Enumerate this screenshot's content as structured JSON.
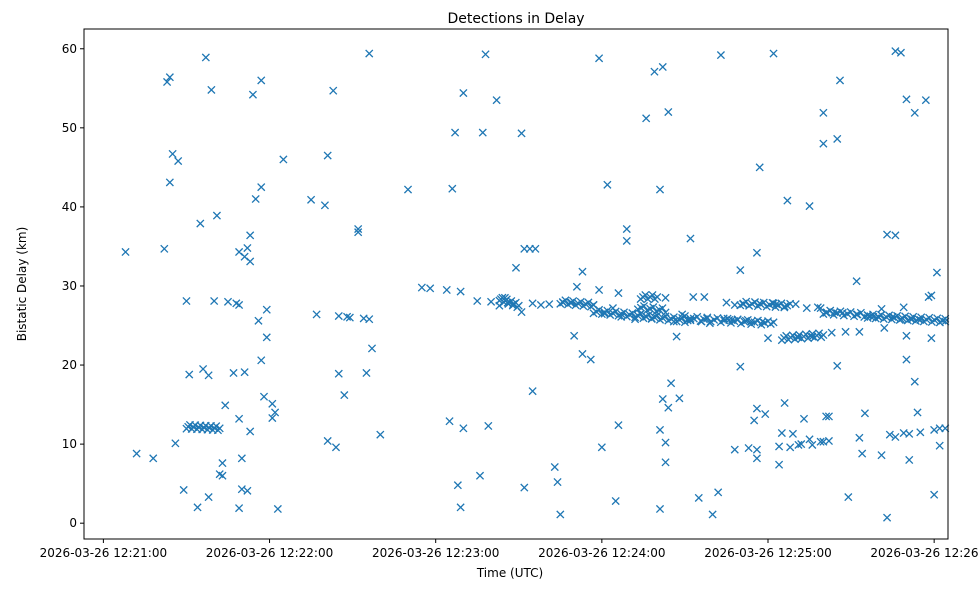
{
  "chart_data": {
    "type": "scatter",
    "title": "Detections in Delay",
    "xlabel": "Time (UTC)",
    "ylabel": "Bistatic Delay (km)",
    "marker": "x",
    "color": "#1f77b4",
    "grid": false,
    "legend": false,
    "x_tick_labels": [
      "2026-03-26 12:21:00",
      "2026-03-26 12:22:00",
      "2026-03-26 12:23:00",
      "2026-03-26 12:24:00",
      "2026-03-26 12:25:00",
      "2026-03-26 12:26:00"
    ],
    "y_ticks": [
      0,
      10,
      20,
      30,
      40,
      50,
      60
    ],
    "xlim": [
      "12:20:53",
      "12:26:05"
    ],
    "ylim": [
      -2,
      62.5
    ],
    "points": [
      [
        "12:21:08",
        34.3
      ],
      [
        "12:21:12",
        8.8
      ],
      [
        "12:21:18",
        8.2
      ],
      [
        "12:21:22",
        34.7
      ],
      [
        "12:21:23",
        55.8
      ],
      [
        "12:21:24",
        43.1
      ],
      [
        "12:21:24",
        56.4
      ],
      [
        "12:21:25",
        46.7
      ],
      [
        "12:21:27",
        45.8
      ],
      [
        "12:21:26",
        10.1
      ],
      [
        "12:21:29",
        4.2
      ],
      [
        "12:21:30",
        28.1
      ],
      [
        "12:21:31",
        18.8
      ],
      [
        "12:21:34",
        2.0
      ],
      [
        "12:21:35",
        37.9
      ],
      [
        "12:21:36",
        19.5
      ],
      [
        "12:21:38",
        18.7
      ],
      [
        "12:21:38",
        3.3
      ],
      [
        "12:21:39",
        54.8
      ],
      [
        "12:21:37",
        58.9
      ],
      [
        "12:21:40",
        28.1
      ],
      [
        "12:21:41",
        38.9
      ],
      [
        "12:21:42",
        6.2
      ],
      [
        "12:21:43",
        7.6
      ],
      [
        "12:21:43",
        6.0
      ],
      [
        "12:21:44",
        14.9
      ],
      [
        "12:21:45",
        28.0
      ],
      [
        "12:21:47",
        19.0
      ],
      [
        "12:21:48",
        27.8
      ],
      [
        "12:21:49",
        34.3
      ],
      [
        "12:21:49",
        27.6
      ],
      [
        "12:21:49",
        1.9
      ],
      [
        "12:21:49",
        13.2
      ],
      [
        "12:21:50",
        8.2
      ],
      [
        "12:21:50",
        4.3
      ],
      [
        "12:21:51",
        19.1
      ],
      [
        "12:21:51",
        33.7
      ],
      [
        "12:21:52",
        4.1
      ],
      [
        "12:21:52",
        34.8
      ],
      [
        "12:21:53",
        33.1
      ],
      [
        "12:21:53",
        36.4
      ],
      [
        "12:21:53",
        11.6
      ],
      [
        "12:21:54",
        54.2
      ],
      [
        "12:21:55",
        41.0
      ],
      [
        "12:21:56",
        25.6
      ],
      [
        "12:21:57",
        56.0
      ],
      [
        "12:21:57",
        42.5
      ],
      [
        "12:21:57",
        20.6
      ],
      [
        "12:21:58",
        16.0
      ],
      [
        "12:21:59",
        27.0
      ],
      [
        "12:21:59",
        23.5
      ],
      [
        "12:22:01",
        15.1
      ],
      [
        "12:22:01",
        13.3
      ],
      [
        "12:22:02",
        14.0
      ],
      [
        "12:22:03",
        1.8
      ],
      [
        "12:22:05",
        46.0
      ],
      [
        "12:22:15",
        40.9
      ],
      [
        "12:22:17",
        26.4
      ],
      [
        "12:22:20",
        40.2
      ],
      [
        "12:22:21",
        10.4
      ],
      [
        "12:22:21",
        46.5
      ],
      [
        "12:22:23",
        54.7
      ],
      [
        "12:22:24",
        9.6
      ],
      [
        "12:22:25",
        26.2
      ],
      [
        "12:22:25",
        18.9
      ],
      [
        "12:22:27",
        16.2
      ],
      [
        "12:22:28",
        26.1
      ],
      [
        "12:22:29",
        26.0
      ],
      [
        "12:22:32",
        37.2
      ],
      [
        "12:22:32",
        36.8
      ],
      [
        "12:22:34",
        25.9
      ],
      [
        "12:22:35",
        19.0
      ],
      [
        "12:22:36",
        59.4
      ],
      [
        "12:22:36",
        25.8
      ],
      [
        "12:22:37",
        22.1
      ],
      [
        "12:22:40",
        11.2
      ],
      [
        "12:22:50",
        42.2
      ],
      [
        "12:22:55",
        29.8
      ],
      [
        "12:22:58",
        29.7
      ],
      [
        "12:23:04",
        29.5
      ],
      [
        "12:23:05",
        12.9
      ],
      [
        "12:23:06",
        42.3
      ],
      [
        "12:23:07",
        49.4
      ],
      [
        "12:23:08",
        4.8
      ],
      [
        "12:23:09",
        29.3
      ],
      [
        "12:23:09",
        2.0
      ],
      [
        "12:23:10",
        12.0
      ],
      [
        "12:23:10",
        54.4
      ],
      [
        "12:23:15",
        28.1
      ],
      [
        "12:23:16",
        6.0
      ],
      [
        "12:23:17",
        49.4
      ],
      [
        "12:23:18",
        59.3
      ],
      [
        "12:23:19",
        12.3
      ],
      [
        "12:23:20",
        28.0
      ],
      [
        "12:23:22",
        53.5
      ],
      [
        "12:23:23",
        27.5
      ],
      [
        "12:23:25",
        28.5
      ],
      [
        "12:23:26",
        27.9
      ],
      [
        "12:23:28",
        27.7
      ],
      [
        "12:23:29",
        32.3
      ],
      [
        "12:23:31",
        49.3
      ],
      [
        "12:23:31",
        26.7
      ],
      [
        "12:23:32",
        4.5
      ],
      [
        "12:23:32",
        34.7
      ],
      [
        "12:23:34",
        34.7
      ],
      [
        "12:23:35",
        16.7
      ],
      [
        "12:23:35",
        27.8
      ],
      [
        "12:23:36",
        34.7
      ],
      [
        "12:23:38",
        27.6
      ],
      [
        "12:23:41",
        27.7
      ],
      [
        "12:23:43",
        7.1
      ],
      [
        "12:23:44",
        5.2
      ],
      [
        "12:23:45",
        1.1
      ],
      [
        "12:23:46",
        27.9
      ],
      [
        "12:23:49",
        27.9
      ],
      [
        "12:23:50",
        23.7
      ],
      [
        "12:23:51",
        29.9
      ],
      [
        "12:23:53",
        21.4
      ],
      [
        "12:23:53",
        31.8
      ],
      [
        "12:23:56",
        20.7
      ],
      [
        "12:23:57",
        27.6
      ],
      [
        "12:23:59",
        58.8
      ],
      [
        "12:23:59",
        29.5
      ],
      [
        "12:24:00",
        9.6
      ],
      [
        "12:24:01",
        26.5
      ],
      [
        "12:24:02",
        42.8
      ],
      [
        "12:24:04",
        27.2
      ],
      [
        "12:24:05",
        2.8
      ],
      [
        "12:24:06",
        12.4
      ],
      [
        "12:24:06",
        29.1
      ],
      [
        "12:24:07",
        26.1
      ],
      [
        "12:24:09",
        35.7
      ],
      [
        "12:24:09",
        37.2
      ],
      [
        "12:24:12",
        25.8
      ],
      [
        "12:24:14",
        26.5
      ],
      [
        "12:24:16",
        26.1
      ],
      [
        "12:24:16",
        51.2
      ],
      [
        "12:24:18",
        25.9
      ],
      [
        "12:24:19",
        57.1
      ],
      [
        "12:24:21",
        42.2
      ],
      [
        "12:24:21",
        11.8
      ],
      [
        "12:24:21",
        1.8
      ],
      [
        "12:24:22",
        57.7
      ],
      [
        "12:24:22",
        15.7
      ],
      [
        "12:24:23",
        7.7
      ],
      [
        "12:24:23",
        28.5
      ],
      [
        "12:24:23",
        10.2
      ],
      [
        "12:24:24",
        52.0
      ],
      [
        "12:24:24",
        14.6
      ],
      [
        "12:24:25",
        17.7
      ],
      [
        "12:24:26",
        25.5
      ],
      [
        "12:24:27",
        23.6
      ],
      [
        "12:24:28",
        15.8
      ],
      [
        "12:24:29",
        26.4
      ],
      [
        "12:24:30",
        26.2
      ],
      [
        "12:24:32",
        36.0
      ],
      [
        "12:24:33",
        28.6
      ],
      [
        "12:24:35",
        3.2
      ],
      [
        "12:24:36",
        25.5
      ],
      [
        "12:24:37",
        28.6
      ],
      [
        "12:24:38",
        25.9
      ],
      [
        "12:24:39",
        25.3
      ],
      [
        "12:24:40",
        1.1
      ],
      [
        "12:24:42",
        3.9
      ],
      [
        "12:24:43",
        59.2
      ],
      [
        "12:24:44",
        25.9
      ],
      [
        "12:24:45",
        27.9
      ],
      [
        "12:24:46",
        25.7
      ],
      [
        "12:24:47",
        25.7
      ],
      [
        "12:24:48",
        27.6
      ],
      [
        "12:24:48",
        9.3
      ],
      [
        "12:24:49",
        25.7
      ],
      [
        "12:24:50",
        19.8
      ],
      [
        "12:24:50",
        32.0
      ],
      [
        "12:24:51",
        27.7
      ],
      [
        "12:24:52",
        25.6
      ],
      [
        "12:24:53",
        9.5
      ],
      [
        "12:24:54",
        25.5
      ],
      [
        "12:24:55",
        13.0
      ],
      [
        "12:24:56",
        34.2
      ],
      [
        "12:24:56",
        9.3
      ],
      [
        "12:24:56",
        8.2
      ],
      [
        "12:24:56",
        14.5
      ],
      [
        "12:24:57",
        45.0
      ],
      [
        "12:24:57",
        27.8
      ],
      [
        "12:24:58",
        25.5
      ],
      [
        "12:24:59",
        13.8
      ],
      [
        "12:25:00",
        23.4
      ],
      [
        "12:25:01",
        25.2
      ],
      [
        "12:25:02",
        59.4
      ],
      [
        "12:25:02",
        25.4
      ],
      [
        "12:25:02",
        27.8
      ],
      [
        "12:25:03",
        27.7
      ],
      [
        "12:25:04",
        9.7
      ],
      [
        "12:25:04",
        7.4
      ],
      [
        "12:25:05",
        11.4
      ],
      [
        "12:25:06",
        27.4
      ],
      [
        "12:25:06",
        15.2
      ],
      [
        "12:25:07",
        40.8
      ],
      [
        "12:25:08",
        9.6
      ],
      [
        "12:25:09",
        11.3
      ],
      [
        "12:25:10",
        27.7
      ],
      [
        "12:25:11",
        9.9
      ],
      [
        "12:25:11",
        23.5
      ],
      [
        "12:25:12",
        10.0
      ],
      [
        "12:25:13",
        13.2
      ],
      [
        "12:25:14",
        27.2
      ],
      [
        "12:25:15",
        40.1
      ],
      [
        "12:25:15",
        10.6
      ],
      [
        "12:25:16",
        23.6
      ],
      [
        "12:25:16",
        9.9
      ],
      [
        "12:25:18",
        27.3
      ],
      [
        "12:25:19",
        10.3
      ],
      [
        "12:25:19",
        27.2
      ],
      [
        "12:25:20",
        10.3
      ],
      [
        "12:25:20",
        51.9
      ],
      [
        "12:25:20",
        48.0
      ],
      [
        "12:25:21",
        13.5
      ],
      [
        "12:25:21",
        26.6
      ],
      [
        "12:25:22",
        13.5
      ],
      [
        "12:25:22",
        10.4
      ],
      [
        "12:25:23",
        24.1
      ],
      [
        "12:25:24",
        26.7
      ],
      [
        "12:25:25",
        19.9
      ],
      [
        "12:25:25",
        48.6
      ],
      [
        "12:25:26",
        56.0
      ],
      [
        "12:25:27",
        26.6
      ],
      [
        "12:25:28",
        24.2
      ],
      [
        "12:25:29",
        3.3
      ],
      [
        "12:25:32",
        30.6
      ],
      [
        "12:25:32",
        26.4
      ],
      [
        "12:25:33",
        24.2
      ],
      [
        "12:25:33",
        10.8
      ],
      [
        "12:25:34",
        8.8
      ],
      [
        "12:25:35",
        13.9
      ],
      [
        "12:25:36",
        26.3
      ],
      [
        "12:25:38",
        26.1
      ],
      [
        "12:25:40",
        26.0
      ],
      [
        "12:25:41",
        8.6
      ],
      [
        "12:25:41",
        27.1
      ],
      [
        "12:25:42",
        24.7
      ],
      [
        "12:25:43",
        36.5
      ],
      [
        "12:25:43",
        0.7
      ],
      [
        "12:25:44",
        11.2
      ],
      [
        "12:25:45",
        26.1
      ],
      [
        "12:25:46",
        36.4
      ],
      [
        "12:25:46",
        59.7
      ],
      [
        "12:25:46",
        10.9
      ],
      [
        "12:25:48",
        59.5
      ],
      [
        "12:25:48",
        25.8
      ],
      [
        "12:25:49",
        27.3
      ],
      [
        "12:25:49",
        11.4
      ],
      [
        "12:25:50",
        53.6
      ],
      [
        "12:25:50",
        23.7
      ],
      [
        "12:25:50",
        20.7
      ],
      [
        "12:25:51",
        8.0
      ],
      [
        "12:25:51",
        11.3
      ],
      [
        "12:25:52",
        25.8
      ],
      [
        "12:25:53",
        17.9
      ],
      [
        "12:25:53",
        51.9
      ],
      [
        "12:25:54",
        14.0
      ],
      [
        "12:25:55",
        25.7
      ],
      [
        "12:25:55",
        11.5
      ],
      [
        "12:25:57",
        53.5
      ],
      [
        "12:25:58",
        28.6
      ],
      [
        "12:25:59",
        28.8
      ],
      [
        "12:25:59",
        23.4
      ],
      [
        "12:26:00",
        11.8
      ],
      [
        "12:26:00",
        3.6
      ],
      [
        "12:26:01",
        31.7
      ],
      [
        "12:26:02",
        9.8
      ],
      [
        "12:26:02",
        12.0
      ],
      [
        "12:26:04",
        12.0
      ],
      [
        "12:26:04",
        25.5
      ]
    ],
    "dense_bands": [
      {
        "t_start": "12:21:30",
        "t_end": "12:21:42",
        "y_start": 12.2,
        "y_end": 12.0,
        "count": 20
      },
      {
        "t_start": "12:23:23",
        "t_end": "12:23:30",
        "y_start": 28.4,
        "y_end": 27.5,
        "count": 14
      },
      {
        "t_start": "12:23:45",
        "t_end": "12:23:57",
        "y_start": 28.0,
        "y_end": 27.6,
        "count": 14
      },
      {
        "t_start": "12:23:57",
        "t_end": "12:24:32",
        "y_start": 26.8,
        "y_end": 25.6,
        "count": 36
      },
      {
        "t_start": "12:24:13",
        "t_end": "12:24:23",
        "y_start": 27.3,
        "y_end": 26.9,
        "count": 10
      },
      {
        "t_start": "12:24:14",
        "t_end": "12:24:20",
        "y_start": 28.6,
        "y_end": 28.6,
        "count": 8
      },
      {
        "t_start": "12:24:32",
        "t_end": "12:25:00",
        "y_start": 25.9,
        "y_end": 25.3,
        "count": 24
      },
      {
        "t_start": "12:24:50",
        "t_end": "12:25:08",
        "y_start": 27.8,
        "y_end": 27.5,
        "count": 18
      },
      {
        "t_start": "12:25:05",
        "t_end": "12:25:20",
        "y_start": 23.4,
        "y_end": 23.8,
        "count": 20
      },
      {
        "t_start": "12:25:20",
        "t_end": "12:25:36",
        "y_start": 26.7,
        "y_end": 26.3,
        "count": 14
      },
      {
        "t_start": "12:25:36",
        "t_end": "12:26:04",
        "y_start": 26.2,
        "y_end": 25.6,
        "count": 30
      }
    ]
  }
}
